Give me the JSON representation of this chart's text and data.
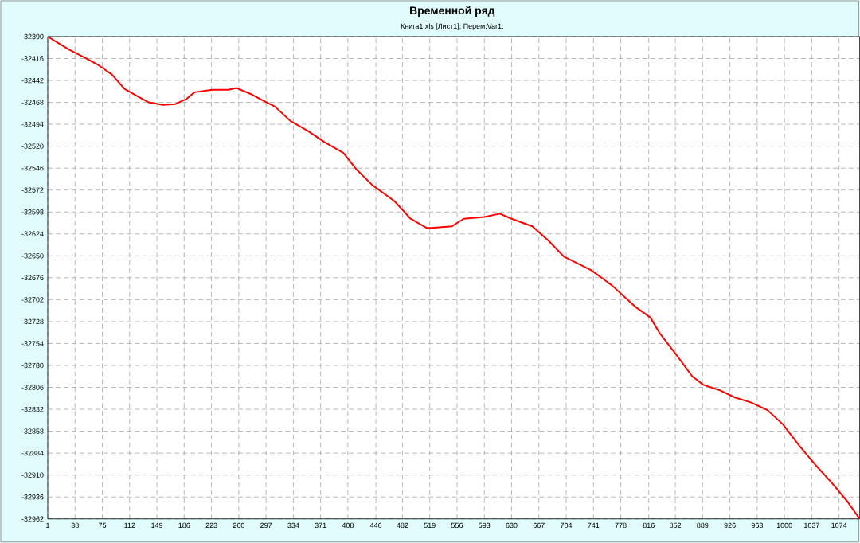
{
  "chart_data": {
    "type": "line",
    "title": "Временной ряд",
    "subtitle": "Книга1.xls [Лист1];    Перем:Var1:",
    "x": [
      1,
      29,
      51,
      70,
      88,
      105,
      125,
      138,
      157,
      174,
      189,
      200,
      224,
      246,
      257,
      276,
      289,
      309,
      330,
      354,
      376,
      402,
      419,
      441,
      471,
      493,
      515,
      521,
      549,
      565,
      593,
      614,
      630,
      658,
      680,
      701,
      738,
      766,
      797,
      818,
      831,
      853,
      875,
      890,
      911,
      933,
      955,
      977,
      998,
      1020,
      1042,
      1063,
      1085,
      1102
    ],
    "series": [
      {
        "color": "#ff0000",
        "values": [
          -32390,
          -32405,
          -32415,
          -32424,
          -32435,
          -32452,
          -32462,
          -32468,
          -32471,
          -32470,
          -32464,
          -32456,
          -32453,
          -32453,
          -32451,
          -32458,
          -32464,
          -32473,
          -32490,
          -32502,
          -32515,
          -32528,
          -32547,
          -32566,
          -32585,
          -32606,
          -32617,
          -32617,
          -32615,
          -32606,
          -32604,
          -32600,
          -32606,
          -32615,
          -32632,
          -32651,
          -32667,
          -32685,
          -32710,
          -32723,
          -32742,
          -32767,
          -32793,
          -32803,
          -32809,
          -32818,
          -32824,
          -32833,
          -32850,
          -32875,
          -32898,
          -32918,
          -32941,
          -32962
        ]
      }
    ],
    "xlim": [
      1,
      1102
    ],
    "ylim": [
      -32962,
      -32390
    ],
    "xticks": [
      1,
      38,
      75,
      112,
      149,
      186,
      223,
      260,
      297,
      334,
      371,
      408,
      446,
      482,
      519,
      556,
      593,
      630,
      667,
      704,
      741,
      778,
      816,
      852,
      889,
      926,
      963,
      1000,
      1037,
      1074
    ],
    "yticks": [
      -32390,
      -32416,
      -32442,
      -32468,
      -32494,
      -32520,
      -32546,
      -32572,
      -32598,
      -32624,
      -32650,
      -32676,
      -32702,
      -32728,
      -32754,
      -32780,
      -32806,
      -32832,
      -32858,
      -32884,
      -32910,
      -32936,
      -32962
    ],
    "grid": true,
    "marker": "none",
    "line_style": "solid"
  }
}
